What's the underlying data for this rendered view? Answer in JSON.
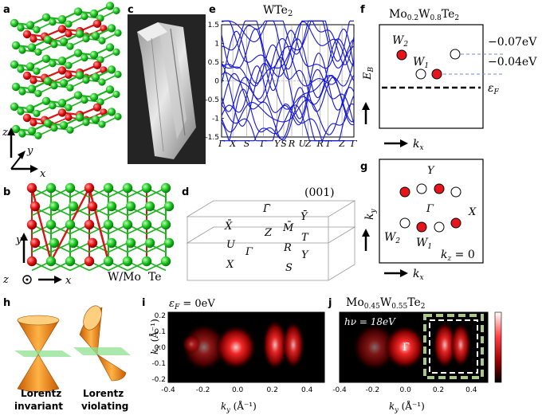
{
  "panels": {
    "a": {
      "label": "a",
      "axis_z": "z",
      "axis_y": "y",
      "axis_x": "x"
    },
    "b": {
      "label": "b",
      "axis_y": "y",
      "axis_z": "z",
      "axis_x": "x",
      "legend_wmo": "W/Mo",
      "legend_te": "Te"
    },
    "c": {
      "label": "c"
    },
    "d": {
      "label": "d",
      "surface": "(001)",
      "points": [
        "Γ̄",
        "X̄",
        "Z",
        "M̄",
        "Ȳ",
        "U",
        "T",
        "Γ",
        "R",
        "X",
        "Y",
        "S"
      ]
    },
    "e": {
      "label": "e",
      "title": "WTe",
      "title_sub": "2",
      "yticks": [
        "1.5",
        "1",
        "0.5",
        "0",
        "-0.5",
        "-1",
        "-1.5"
      ],
      "xticks": [
        "Γ",
        "X",
        "S",
        "Γ",
        "Y",
        "S",
        "R",
        "U",
        "Z",
        "R",
        "T",
        "Z",
        "Γ"
      ]
    },
    "f": {
      "label": "f",
      "title_pre": "Mo",
      "title_sub1": "0.2",
      "title_mid": "W",
      "title_sub2": "0.8",
      "title_post": "Te",
      "title_sub3": "2",
      "w2": "W",
      "w2_sub": "2",
      "w1": "W",
      "w1_sub": "1",
      "energy1": "−0.07eV",
      "energy2": "−0.04eV",
      "eb": "E",
      "eb_sub": "B",
      "ef": "ε",
      "ef_sub": "F",
      "kx": "k",
      "kx_sub": "x",
      "colors": {
        "weyl_red": "#e8141c",
        "dashed_blue": "#6a8fd6"
      }
    },
    "g": {
      "label": "g",
      "Y": "Y",
      "X": "X",
      "Gamma": "Γ",
      "w2": "W",
      "w2_sub": "2",
      "w1": "W",
      "w1_sub": "1",
      "ky": "k",
      "ky_sub": "y",
      "kx": "k",
      "kx_sub": "x",
      "kz": "k",
      "kz_sub": "z",
      "kz_val": " = 0"
    },
    "h": {
      "label": "h",
      "invariant_line1": "Lorentz",
      "invariant_line2": "invariant",
      "violating_line1": "Lorentz",
      "violating_line2": "violating"
    },
    "i": {
      "label": "i",
      "annotation": "ε",
      "annotation_sub": "F",
      "annotation_val": " = 0eV",
      "ylabel": "k",
      "ylabel_sub": "x",
      "yunit": " (Å⁻¹)",
      "xlabel": "k",
      "xlabel_sub": "y",
      "xunit": " (Å⁻¹)",
      "xticks": [
        "-0.4",
        "-0.2",
        "0.0",
        "0.2",
        "0.4"
      ],
      "yticks": [
        "0.2",
        "0.1",
        "0.0",
        "-0.1",
        "-0.2"
      ]
    },
    "j": {
      "label": "j",
      "title_pre": "Mo",
      "title_sub1": "0.45",
      "title_mid": "W",
      "title_sub2": "0.55",
      "title_post": "Te",
      "title_sub3": "2",
      "annotation": "hν = 18eV",
      "gamma": "Γ̄",
      "xlabel": "k",
      "xlabel_sub": "y",
      "xunit": " (Å⁻¹)",
      "xticks": [
        "-0.4",
        "-0.2",
        "0.0",
        "0.2",
        "0.4"
      ]
    }
  }
}
